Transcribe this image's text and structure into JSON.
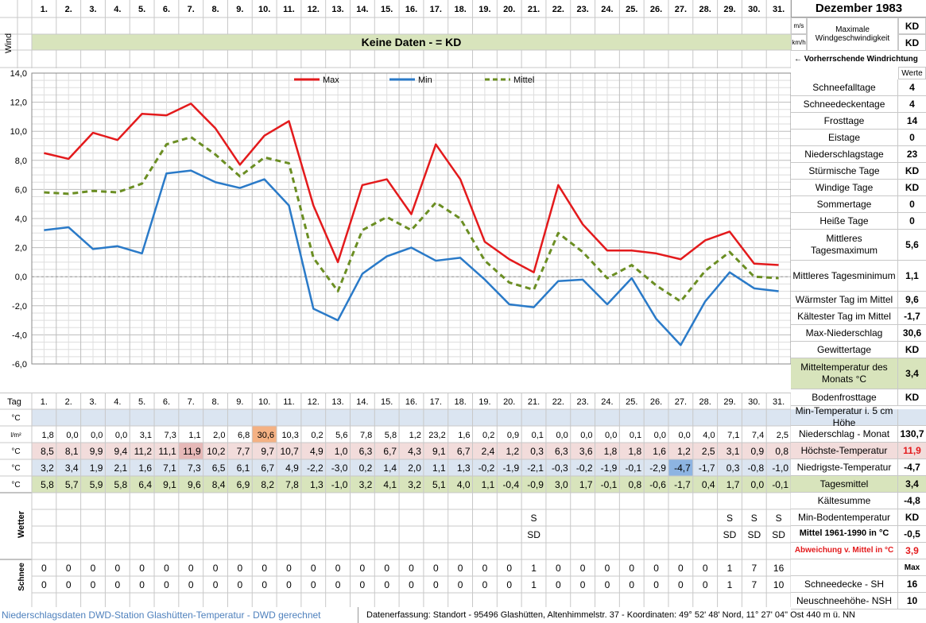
{
  "days": [
    "1.",
    "2.",
    "3.",
    "4.",
    "5.",
    "6.",
    "7.",
    "8.",
    "9.",
    "10.",
    "11.",
    "12.",
    "13.",
    "14.",
    "15.",
    "16.",
    "17.",
    "18.",
    "19.",
    "20.",
    "21.",
    "22.",
    "23.",
    "24.",
    "25.",
    "26.",
    "27.",
    "28.",
    "29.",
    "30.",
    "31."
  ],
  "header": {
    "month_title": "Dezember 1983",
    "wind_label": "Wind",
    "tag_label": "Tag",
    "no_data_banner": "Keine Daten -  = KD",
    "unit_ms": "m/s",
    "unit_kmh": "km/h",
    "max_wind_label": "Maximale Windgeschwindigkeit",
    "max_wind_ms": "KD",
    "max_wind_kmh": "KD",
    "wind_direction_label": "← Vorherrschende Windrichtung",
    "werte_label": "Werte"
  },
  "chart_data": {
    "type": "line",
    "x": [
      1,
      2,
      3,
      4,
      5,
      6,
      7,
      8,
      9,
      10,
      11,
      12,
      13,
      14,
      15,
      16,
      17,
      18,
      19,
      20,
      21,
      22,
      23,
      24,
      25,
      26,
      27,
      28,
      29,
      30,
      31
    ],
    "ylim": [
      -6,
      14
    ],
    "yticks": [
      "14,0",
      "12,0",
      "10,0",
      "8,0",
      "6,0",
      "4,0",
      "2,0",
      "0,0",
      "-2,0",
      "-4,0",
      "-6,0"
    ],
    "grid": true,
    "legend_position": "top",
    "series": [
      {
        "name": "Max",
        "color": "#e31a1c",
        "style": "solid",
        "values": [
          8.5,
          8.1,
          9.9,
          9.4,
          11.2,
          11.1,
          11.9,
          10.2,
          7.7,
          9.7,
          10.7,
          4.9,
          1.0,
          6.3,
          6.7,
          4.3,
          9.1,
          6.7,
          2.4,
          1.2,
          0.3,
          6.3,
          3.6,
          1.8,
          1.8,
          1.6,
          1.2,
          2.5,
          3.1,
          0.9,
          0.8
        ]
      },
      {
        "name": "Min",
        "color": "#2a7ac8",
        "style": "solid",
        "values": [
          3.2,
          3.4,
          1.9,
          2.1,
          1.6,
          7.1,
          7.3,
          6.5,
          6.1,
          6.7,
          4.9,
          -2.2,
          -3.0,
          0.2,
          1.4,
          2.0,
          1.1,
          1.3,
          -0.2,
          -1.9,
          -2.1,
          -0.3,
          -0.2,
          -1.9,
          -0.1,
          -2.9,
          -4.7,
          -1.7,
          0.3,
          -0.8,
          -1.0
        ]
      },
      {
        "name": "Mittel",
        "color": "#6b8e23",
        "style": "dashed",
        "values": [
          5.8,
          5.7,
          5.9,
          5.8,
          6.4,
          9.1,
          9.6,
          8.4,
          6.9,
          8.2,
          7.8,
          1.3,
          -1.0,
          3.2,
          4.1,
          3.2,
          5.1,
          4.0,
          1.1,
          -0.4,
          -0.9,
          3.0,
          1.7,
          -0.1,
          0.8,
          -0.6,
          -1.7,
          0.4,
          1.7,
          0.0,
          -0.1
        ]
      }
    ]
  },
  "table": {
    "rows": [
      {
        "unit": "°C",
        "values": [
          "",
          "",
          "",
          "",
          "",
          "",
          "",
          "",
          "",
          "",
          "",
          "",
          "",
          "",
          "",
          "",
          "",
          "",
          "",
          "",
          "",
          "",
          "",
          "",
          "",
          "",
          "",
          "",
          "",
          "",
          ""
        ],
        "label": "Min-Temperatur i. 5 cm Höhe",
        "total": ""
      },
      {
        "unit": "l/m²",
        "values": [
          "1,8",
          "0,0",
          "0,0",
          "0,0",
          "3,1",
          "7,3",
          "1,1",
          "2,0",
          "6,8",
          "30,6",
          "10,3",
          "0,2",
          "5,6",
          "7,8",
          "5,8",
          "1,2",
          "23,2",
          "1,6",
          "0,2",
          "0,9",
          "0,1",
          "0,0",
          "0,0",
          "0,0",
          "0,1",
          "0,0",
          "0,0",
          "4,0",
          "7,1",
          "7,4",
          "2,5"
        ],
        "label": "Niederschlag - Monat",
        "total": "130,7"
      },
      {
        "unit": "°C",
        "values": [
          "8,5",
          "8,1",
          "9,9",
          "9,4",
          "11,2",
          "11,1",
          "11,9",
          "10,2",
          "7,7",
          "9,7",
          "10,7",
          "4,9",
          "1,0",
          "6,3",
          "6,7",
          "4,3",
          "9,1",
          "6,7",
          "2,4",
          "1,2",
          "0,3",
          "6,3",
          "3,6",
          "1,8",
          "1,8",
          "1,6",
          "1,2",
          "2,5",
          "3,1",
          "0,9",
          "0,8"
        ],
        "label": "Höchste-Temperatur",
        "total": "11,9"
      },
      {
        "unit": "°C",
        "values": [
          "3,2",
          "3,4",
          "1,9",
          "2,1",
          "1,6",
          "7,1",
          "7,3",
          "6,5",
          "6,1",
          "6,7",
          "4,9",
          "-2,2",
          "-3,0",
          "0,2",
          "1,4",
          "2,0",
          "1,1",
          "1,3",
          "-0,2",
          "-1,9",
          "-2,1",
          "-0,3",
          "-0,2",
          "-1,9",
          "-0,1",
          "-2,9",
          "-4,7",
          "-1,7",
          "0,3",
          "-0,8",
          "-1,0"
        ],
        "label": "Niedrigste-Temperatur",
        "total": "-4,7"
      },
      {
        "unit": "°C",
        "values": [
          "5,8",
          "5,7",
          "5,9",
          "5,8",
          "6,4",
          "9,1",
          "9,6",
          "8,4",
          "6,9",
          "8,2",
          "7,8",
          "1,3",
          "-1,0",
          "3,2",
          "4,1",
          "3,2",
          "5,1",
          "4,0",
          "1,1",
          "-0,4",
          "-0,9",
          "3,0",
          "1,7",
          "-0,1",
          "0,8",
          "-0,6",
          "-1,7",
          "0,4",
          "1,7",
          "0,0",
          "-0,1"
        ],
        "label": "Tagesmittel",
        "total": "3,4"
      }
    ],
    "weather_label": "Wetter",
    "weather_row1": [
      "",
      "",
      "",
      "",
      "",
      "",
      "",
      "",
      "",
      "",
      "",
      "",
      "",
      "",
      "",
      "",
      "",
      "",
      "",
      "",
      "S",
      "",
      "",
      "",
      "",
      "",
      "",
      "",
      "S",
      "S",
      "S"
    ],
    "weather_row2": [
      "",
      "",
      "",
      "",
      "",
      "",
      "",
      "",
      "",
      "",
      "",
      "",
      "",
      "",
      "",
      "",
      "",
      "",
      "",
      "",
      "SD",
      "",
      "",
      "",
      "",
      "",
      "",
      "",
      "SD",
      "SD",
      "SD"
    ],
    "snow_label": "Schnee",
    "snow_sh": [
      "0",
      "0",
      "0",
      "0",
      "0",
      "0",
      "0",
      "0",
      "0",
      "0",
      "0",
      "0",
      "0",
      "0",
      "0",
      "0",
      "0",
      "0",
      "0",
      "0",
      "1",
      "0",
      "0",
      "0",
      "0",
      "0",
      "0",
      "0",
      "1",
      "7",
      "16"
    ],
    "snow_nsh": [
      "0",
      "0",
      "0",
      "0",
      "0",
      "0",
      "0",
      "0",
      "0",
      "0",
      "0",
      "0",
      "0",
      "0",
      "0",
      "0",
      "0",
      "0",
      "0",
      "0",
      "1",
      "0",
      "0",
      "0",
      "0",
      "0",
      "0",
      "0",
      "1",
      "7",
      "10"
    ]
  },
  "stats": [
    {
      "label": "Schneefalltage",
      "value": "4"
    },
    {
      "label": "Schneedeckentage",
      "value": "4"
    },
    {
      "label": "Frosttage",
      "value": "14"
    },
    {
      "label": "Eistage",
      "value": "0"
    },
    {
      "label": "Niederschlagstage",
      "value": "23"
    },
    {
      "label": "Stürmische Tage",
      "value": "KD"
    },
    {
      "label": "Windige Tage",
      "value": "KD"
    },
    {
      "label": "Sommertage",
      "value": "0"
    },
    {
      "label": "Heiße Tage",
      "value": "0"
    },
    {
      "label": "Mittleres Tagesmaximum",
      "value": "5,6"
    },
    {
      "label": "Mittleres Tagesminimum",
      "value": "1,1"
    },
    {
      "label": "Wärmster Tag im Mittel",
      "value": "9,6"
    },
    {
      "label": "Kältester Tag im Mittel",
      "value": "-1,7"
    },
    {
      "label": "Max-Niederschlag",
      "value": "30,6"
    },
    {
      "label": "Gewittertage",
      "value": "KD"
    },
    {
      "label": "Mitteltemperatur des Monats °C",
      "value": "3,4"
    },
    {
      "label": "Bodenfrosttage",
      "value": "KD"
    }
  ],
  "lower_stats": [
    {
      "label": "Kältesumme",
      "value": "-4,8"
    },
    {
      "label": "Min-Bodentemperatur",
      "value": "KD"
    },
    {
      "label": "Mittel 1961-1990 in °C",
      "value": "-0,5"
    },
    {
      "label": "Abweichung v. Mittel in °C",
      "value": "3,9"
    },
    {
      "label": "",
      "value": "Max"
    },
    {
      "label": "Schneedecke -  SH",
      "value": "16"
    },
    {
      "label": "Neuschneehöhe- NSH",
      "value": "10"
    }
  ],
  "footer": {
    "left": "Niederschlagsdaten DWD-Station Glashütten-Temperatur -  DWD gerechnet",
    "right": "Datenerfassung: Standort -  95496  Glashütten, Altenhimmelstr. 37 - Koordinaten:  49° 52' 48' Nord,   11° 27' 04\" Ost  440 m ü. NN"
  },
  "colors": {
    "green_fill": "#d8e4bc",
    "blue_fill": "#dbe5f1",
    "red_fill": "#f2dcdb",
    "orange_highlight": "#f4b183",
    "blue_highlight": "#8db4e2",
    "footer_blue": "#4f81bd",
    "red_text": "#e31a1c"
  }
}
